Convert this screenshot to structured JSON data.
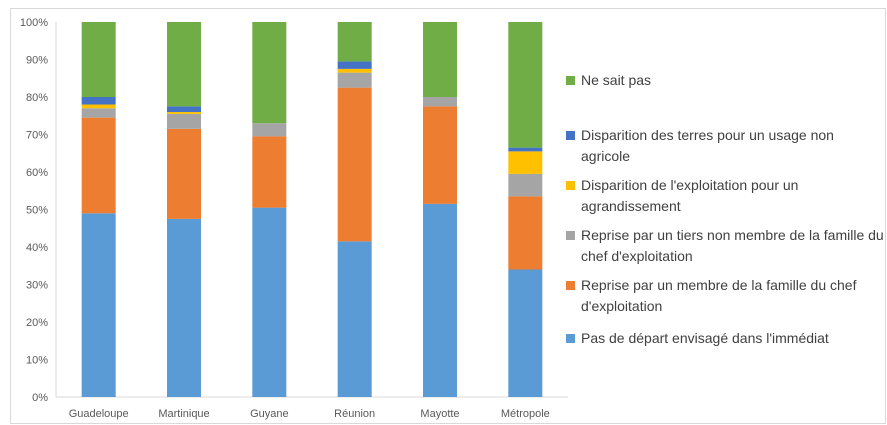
{
  "chart_data": {
    "type": "bar",
    "stacked": true,
    "categories": [
      "Guadeloupe",
      "Martinique",
      "Guyane",
      "Réunion",
      "Mayotte",
      "Métropole"
    ],
    "series": [
      {
        "name": "Pas de départ envisagé dans l'immédiat",
        "color": "#5b9bd5",
        "values": [
          49,
          47.5,
          50.5,
          41.5,
          51.5,
          34
        ]
      },
      {
        "name": "Reprise par un membre de la famille du chef d'exploitation",
        "color": "#ed7d31",
        "values": [
          25.5,
          24,
          19,
          41,
          26,
          19.5
        ]
      },
      {
        "name": "Reprise par un tiers non membre de la famille du chef d'exploitation",
        "color": "#a5a5a5",
        "values": [
          2.5,
          4,
          3.5,
          4,
          2.5,
          6
        ]
      },
      {
        "name": "Disparition de l'exploitation pour un agrandissement",
        "color": "#ffc000",
        "values": [
          1,
          0.5,
          0,
          1,
          0,
          6
        ]
      },
      {
        "name": "Disparition des terres pour un usage non agricole",
        "color": "#4472c4",
        "values": [
          2,
          1.5,
          0,
          2,
          0,
          1
        ]
      },
      {
        "name": "Ne sait pas",
        "color": "#70ad47",
        "values": [
          20,
          22.5,
          27,
          10.5,
          20,
          33.5
        ]
      }
    ],
    "yticks": [
      "0%",
      "10%",
      "20%",
      "30%",
      "40%",
      "50%",
      "60%",
      "70%",
      "80%",
      "90%",
      "100%"
    ],
    "ylim": [
      0,
      100
    ],
    "grid": false,
    "legend_position": "right"
  }
}
